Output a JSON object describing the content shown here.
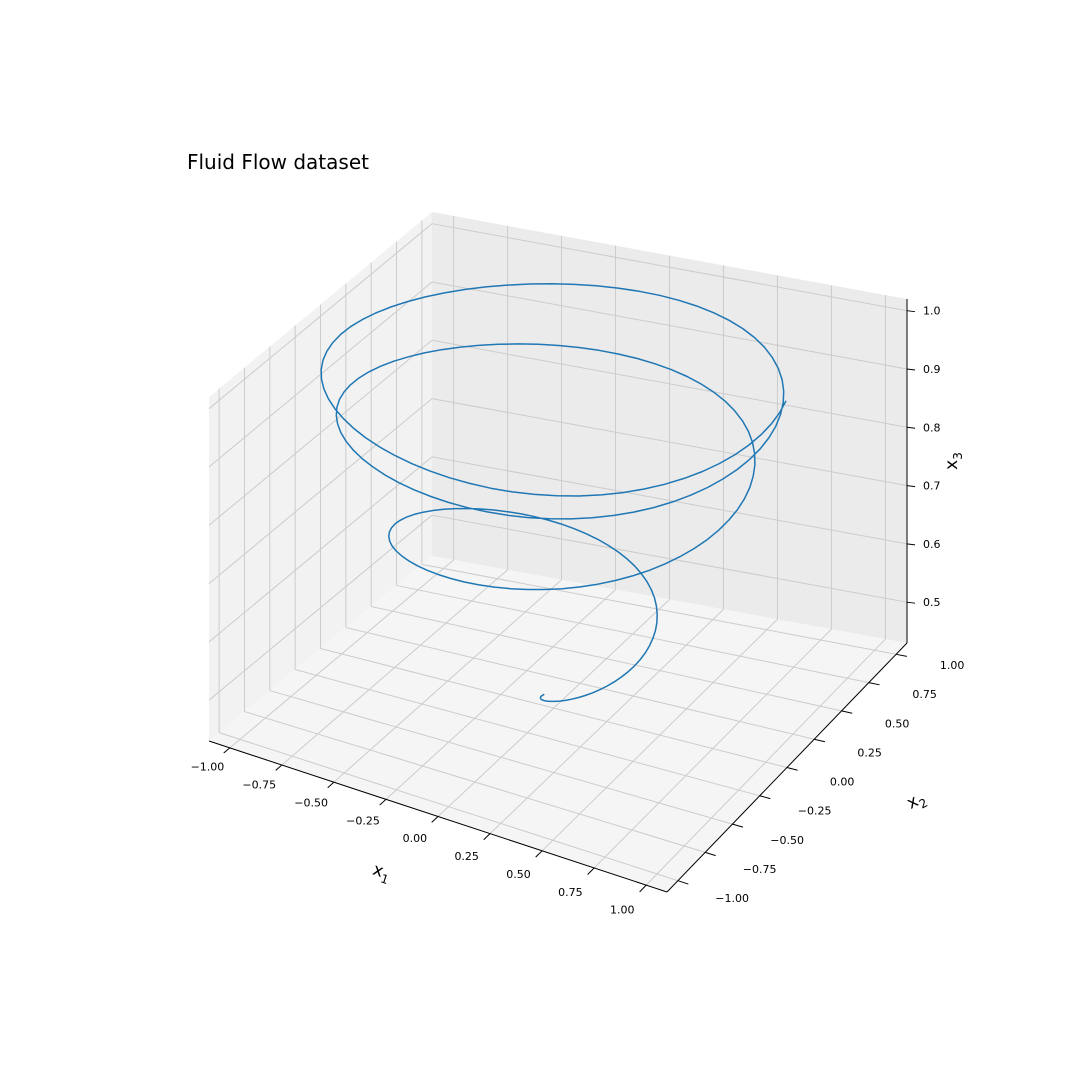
{
  "chart_data": {
    "type": "line3d",
    "title": "Fluid Flow dataset",
    "xlabel": "x",
    "xlabel_sub": "1",
    "ylabel": "x",
    "ylabel_sub": "2",
    "zlabel": "x",
    "zlabel_sub": "3",
    "xlim": [
      -1.1,
      1.1
    ],
    "ylim": [
      -1.1,
      1.1
    ],
    "zlim": [
      0.43,
      1.02
    ],
    "xticks": [
      -1.0,
      -0.75,
      -0.5,
      -0.25,
      0.0,
      0.25,
      0.5,
      0.75,
      1.0
    ],
    "xtick_labels": [
      "−1.00",
      "−0.75",
      "−0.50",
      "−0.25",
      "0.00",
      "0.25",
      "0.50",
      "0.75",
      "1.00"
    ],
    "yticks": [
      -1.0,
      -0.75,
      -0.5,
      -0.25,
      0.0,
      0.25,
      0.5,
      0.75,
      1.0
    ],
    "ytick_labels": [
      "−1.00",
      "−0.75",
      "−0.50",
      "−0.25",
      "0.00",
      "0.25",
      "0.50",
      "0.75",
      "1.00"
    ],
    "zticks": [
      0.5,
      0.6,
      0.7,
      0.8,
      0.9,
      1.0
    ],
    "ztick_labels": [
      "0.5",
      "0.6",
      "0.7",
      "0.8",
      "0.9",
      "1.0"
    ],
    "grid": true,
    "series": [
      {
        "color": "#1f77b4",
        "trajectory": "spiral from (x1 -0.02, x2 -0.05, x3 0.46) growing in radius and rising to a stable ring of radius about 1.0 at x3 about 1.0",
        "x_start": -0.02,
        "y_start": -0.05,
        "z_start": 0.46,
        "z_end": 1.0,
        "r_end": 1.0
      }
    ]
  }
}
